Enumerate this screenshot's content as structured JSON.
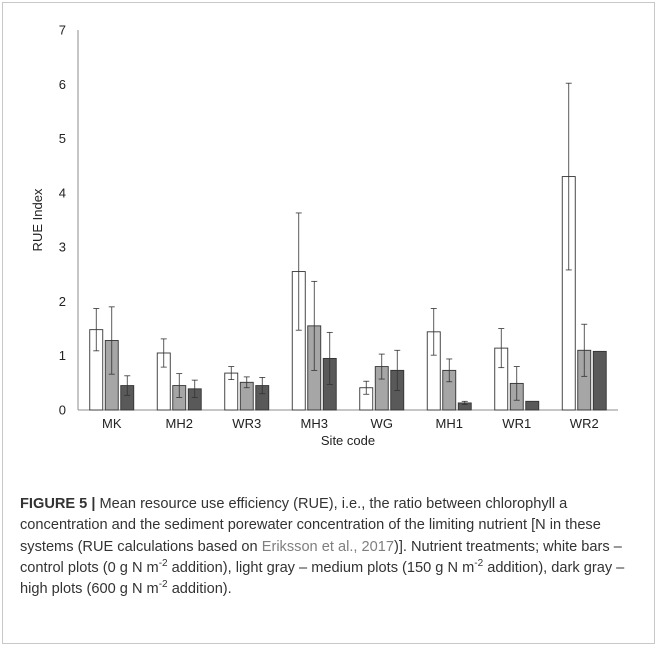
{
  "chart_data": {
    "type": "bar",
    "ylabel": "RUE Index",
    "xlabel": "Site code",
    "ylim": [
      0,
      7
    ],
    "yticks": [
      "0",
      "1",
      "2",
      "3",
      "4",
      "5",
      "6",
      "7"
    ],
    "categories": [
      "MK",
      "MH2",
      "WR3",
      "MH3",
      "WG",
      "MH1",
      "WR1",
      "WR2"
    ],
    "grid": false,
    "legend": "none",
    "series": [
      {
        "color": "#ffffff",
        "values": [
          1.48,
          1.05,
          0.68,
          2.55,
          0.41,
          1.44,
          1.14,
          4.3
        ],
        "errors": [
          0.39,
          0.26,
          0.12,
          1.08,
          0.12,
          0.43,
          0.36,
          1.72
        ]
      },
      {
        "color": "#a6a6a6",
        "values": [
          1.28,
          0.45,
          0.51,
          1.55,
          0.8,
          0.73,
          0.49,
          1.1
        ],
        "errors": [
          0.62,
          0.22,
          0.1,
          0.82,
          0.23,
          0.21,
          0.31,
          0.48
        ]
      },
      {
        "color": "#595959",
        "values": [
          0.45,
          0.39,
          0.45,
          0.95,
          0.73,
          0.13,
          0.16,
          1.08
        ],
        "errors": [
          0.18,
          0.16,
          0.15,
          0.48,
          0.37,
          0.03,
          0.0,
          0.0
        ]
      }
    ]
  },
  "caption": {
    "figure_label": "FIGURE 5 |",
    "text_1": "Mean resource use efficiency (RUE), i.e., the ratio between chlorophyll a concentration and the sediment porewater concentration of the limiting nutrient [N in these systems (RUE calculations based on",
    "reference": "Eriksson et al., 2017",
    "text_2": ")]. Nutrient treatments; white bars – control plots (0 g N m",
    "sup_1": "-2",
    "text_3": "addition), light gray – medium plots (150 g N m",
    "sup_2": "-2",
    "text_4": "addition), dark gray – high plots (600 g N m",
    "sup_3": "-2",
    "text_5": "addition)."
  }
}
